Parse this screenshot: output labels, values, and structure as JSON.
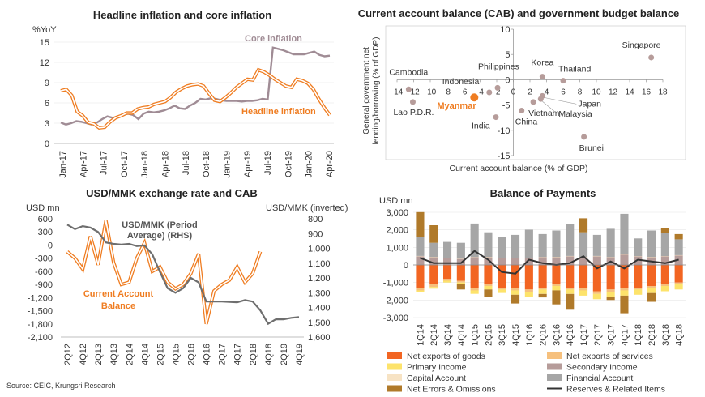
{
  "source": "Source: CEIC, Krungsri Research",
  "chart_data": [
    {
      "type": "line",
      "title": "Headline inflation and core inflation",
      "ylabel": "%YoY",
      "ylim": [
        0,
        15
      ],
      "yticks": [
        0,
        3,
        6,
        9,
        12,
        15
      ],
      "x_tick_labels": [
        "Jan-17",
        "Apr-17",
        "Jul-17",
        "Oct-17",
        "Jan-18",
        "Apr-18",
        "Jul-18",
        "Oct-18",
        "Jan-19",
        "Apr-19",
        "Jul-19",
        "Oct-19",
        "Jan-20",
        "Apr-20"
      ],
      "series": [
        {
          "name": "Core inflation",
          "color": "#a08c95",
          "values": [
            3.1,
            2.8,
            3.0,
            3.3,
            3.2,
            3.0,
            2.8,
            3.1,
            3.6,
            4.0,
            3.8,
            3.9,
            4.2,
            4.4,
            4.2,
            3.6,
            4.4,
            4.7,
            4.6,
            4.7,
            4.9,
            5.2,
            5.6,
            5.2,
            5.1,
            5.6,
            6.0,
            6.6,
            6.5,
            6.7,
            6.6,
            6.4,
            6.3,
            6.3,
            6.3,
            6.2,
            6.3,
            6.3,
            6.4,
            6.6,
            6.5,
            14.2,
            14.0,
            13.8,
            13.5,
            13.2,
            13.2,
            13.2,
            13.4,
            13.6,
            13.1,
            12.9,
            13.0
          ]
        },
        {
          "name": "Headline inflation",
          "color": "#ef7d22",
          "values": [
            7.8,
            8.0,
            7.1,
            4.7,
            4.1,
            3.1,
            2.9,
            2.3,
            2.4,
            3.2,
            3.8,
            4.1,
            4.5,
            4.5,
            5.1,
            5.3,
            5.4,
            5.8,
            6.0,
            6.2,
            6.8,
            7.6,
            8.1,
            8.5,
            8.7,
            8.8,
            8.5,
            7.4,
            6.4,
            6.2,
            6.8,
            7.5,
            8.3,
            8.9,
            9.5,
            9.4,
            10.9,
            10.6,
            10.1,
            9.5,
            9.0,
            8.5,
            8.3,
            9.5,
            9.3,
            8.9,
            8.0,
            6.6,
            5.3,
            4.2
          ]
        }
      ]
    },
    {
      "type": "scatter",
      "title": "Current account balance (CAB) and government budget balance",
      "xlabel": "Current account balance (% of GDP)",
      "ylabel": "General government net lending/borrowing (% of GDP)",
      "xlim": [
        -14,
        18
      ],
      "ylim": [
        -15,
        10
      ],
      "xticks": [
        -14,
        -12,
        -10,
        -8,
        -6,
        -4,
        -2,
        0,
        2,
        4,
        6,
        8,
        10,
        12,
        14,
        16,
        18
      ],
      "yticks": [
        -15,
        -10,
        -5,
        0,
        5,
        10
      ],
      "points": [
        {
          "label": "Singapore",
          "x": 16.6,
          "y": 4.4
        },
        {
          "label": "Korea",
          "x": 3.5,
          "y": 0.6
        },
        {
          "label": "Thailand",
          "x": 6.0,
          "y": -0.2
        },
        {
          "label": "Philippines",
          "x": -1.9,
          "y": -1.6
        },
        {
          "label": "Indonesia",
          "x": -2.9,
          "y": -2.5
        },
        {
          "label": "Cambodia",
          "x": -12.6,
          "y": -1.9
        },
        {
          "label": "Lao P.D.R.",
          "x": -12.1,
          "y": -4.4
        },
        {
          "label": "Myanmar",
          "x": -4.7,
          "y": -3.5
        },
        {
          "label": "India",
          "x": -2.1,
          "y": -7.4
        },
        {
          "label": "China",
          "x": 1.0,
          "y": -6.1
        },
        {
          "label": "Vietnam",
          "x": 2.4,
          "y": -4.4
        },
        {
          "label": "Japan",
          "x": 3.5,
          "y": -3.2
        },
        {
          "label": "Malaysia",
          "x": 3.3,
          "y": -3.8
        },
        {
          "label": "Brunei",
          "x": 8.5,
          "y": -11.3
        }
      ]
    },
    {
      "type": "line",
      "title": "USD/MMK exchange rate and CAB",
      "left_unit": "USD mn",
      "right_unit": "USD/MMK (inverted)",
      "ylim_left": [
        -2100,
        600
      ],
      "ylim_right": [
        1600,
        800
      ],
      "yticks_left": [
        600,
        300,
        0,
        -300,
        -600,
        -900,
        -1200,
        -1500,
        -1800,
        -2100
      ],
      "ytick_labels_left": [
        "600",
        "300",
        "0",
        "-300",
        "-600",
        "-900",
        "-1,200",
        "-1,500",
        "-1,800",
        "-2,100"
      ],
      "yticks_right": [
        800,
        900,
        1000,
        1100,
        1200,
        1300,
        1400,
        1500,
        1600
      ],
      "ytick_labels_right": [
        "800",
        "900",
        "1,000",
        "1,100",
        "1,200",
        "1,300",
        "1,400",
        "1,500",
        "1,600"
      ],
      "categories": [
        "2Q12",
        "3Q12",
        "4Q12",
        "1Q13",
        "2Q13",
        "3Q13",
        "4Q13",
        "1Q14",
        "2Q14",
        "3Q14",
        "4Q14",
        "1Q15",
        "2Q15",
        "3Q15",
        "4Q15",
        "1Q16",
        "2Q16",
        "3Q16",
        "4Q16",
        "1Q17",
        "2Q17",
        "3Q17",
        "4Q17",
        "1Q18",
        "2Q18",
        "3Q18",
        "4Q18",
        "1Q19",
        "2Q19",
        "3Q19",
        "4Q19"
      ],
      "x_tick_labels": [
        "2Q12",
        "4Q12",
        "2Q13",
        "4Q13",
        "2Q14",
        "4Q14",
        "2Q15",
        "4Q15",
        "2Q16",
        "4Q16",
        "2Q17",
        "4Q17",
        "2Q18",
        "4Q18",
        "2Q19",
        "4Q19"
      ],
      "series": [
        {
          "name": "Current Account Balance",
          "axis": "left",
          "color": "#ef7d22",
          "values": [
            -150,
            -300,
            -550,
            200,
            -450,
            560,
            -400,
            -900,
            -850,
            -300,
            50,
            -600,
            -500,
            -850,
            -1000,
            -900,
            -650,
            -200,
            -1800,
            -1050,
            -900,
            -800,
            -500,
            -850,
            -650,
            -150,
            null,
            null,
            null,
            null,
            null
          ]
        },
        {
          "name": "USD/MMK (Period Average) (RHS)",
          "axis": "right",
          "color": "#6e6e6e",
          "values": [
            840,
            870,
            850,
            860,
            890,
            960,
            970,
            975,
            970,
            985,
            980,
            1040,
            1160,
            1270,
            1300,
            1270,
            1200,
            1230,
            1360,
            1360,
            1360,
            1362,
            1365,
            1350,
            1360,
            1420,
            1510,
            1480,
            1480,
            1470,
            1465
          ]
        }
      ],
      "annotations": [
        "USD/MMK (Period",
        "Average) (RHS)",
        "Current Account",
        "Balance"
      ]
    },
    {
      "type": "bar",
      "title": "Balance of Payments",
      "ylabel": "USD mn",
      "ylim": [
        -3000,
        3000
      ],
      "yticks": [
        3000,
        2000,
        1000,
        0,
        -1000,
        -2000,
        -3000
      ],
      "ytick_labels": [
        "3,000",
        "2,000",
        "1,000",
        "0",
        "-1,000",
        "-2,000",
        "-3,000"
      ],
      "categories": [
        "1Q14",
        "2Q14",
        "3Q14",
        "4Q14",
        "1Q15",
        "2Q15",
        "3Q15",
        "4Q15",
        "1Q16",
        "2Q16",
        "3Q16",
        "4Q16",
        "1Q17",
        "2Q17",
        "3Q17",
        "4Q17",
        "1Q18",
        "2Q18",
        "3Q18",
        "4Q18"
      ],
      "x_tick_labels": [
        "1Q14",
        "2Q14",
        "3Q14",
        "4Q14",
        "1Q15",
        "2Q15",
        "3Q15",
        "4Q15",
        "1Q16",
        "2Q16",
        "3Q16",
        "4Q16",
        "1Q17",
        "2Q17",
        "3Q17",
        "4Q17",
        "1Q18",
        "2Q18",
        "3Q18",
        "4Q18"
      ],
      "series": [
        {
          "name": "Net exports of goods",
          "color": "#f26522",
          "values": [
            -1300,
            -1100,
            -800,
            -900,
            -1300,
            -1100,
            -1300,
            -1300,
            -1400,
            -1300,
            -1100,
            -1300,
            -1300,
            -1500,
            -1400,
            -1300,
            -1300,
            -1200,
            -1100,
            -1000
          ]
        },
        {
          "name": "Net exports of services",
          "color": "#f6c07d",
          "values": [
            -150,
            -150,
            -100,
            -100,
            -150,
            -100,
            -100,
            -150,
            -150,
            -100,
            -100,
            -100,
            -150,
            -150,
            -150,
            -150,
            -100,
            -100,
            -100,
            -100
          ]
        },
        {
          "name": "Primary Income",
          "color": "#fde36b",
          "values": [
            -100,
            -100,
            -100,
            -100,
            -200,
            -200,
            -200,
            -250,
            -250,
            -250,
            -250,
            -250,
            -300,
            -300,
            -250,
            -300,
            -300,
            -300,
            -300,
            -300
          ]
        },
        {
          "name": "Secondary Income",
          "color": "#b69c9a",
          "values": [
            500,
            450,
            400,
            350,
            450,
            450,
            400,
            400,
            400,
            450,
            450,
            500,
            450,
            500,
            450,
            600,
            500,
            450,
            500,
            550
          ]
        },
        {
          "name": "Capital Account",
          "color": "#f7e3c4",
          "values": [
            10,
            10,
            10,
            10,
            10,
            10,
            10,
            10,
            10,
            10,
            10,
            10,
            10,
            10,
            10,
            10,
            10,
            10,
            10,
            10
          ]
        },
        {
          "name": "Financial Account",
          "color": "#a6a6a6",
          "values": [
            1100,
            800,
            900,
            900,
            1900,
            1400,
            1200,
            1300,
            1600,
            1300,
            1500,
            1800,
            1400,
            1200,
            1600,
            2300,
            1000,
            1500,
            1300,
            900
          ]
        },
        {
          "name": "Net Errors & Omissions",
          "color": "#b07a2a",
          "values": [
            1400,
            1000,
            0,
            -300,
            0,
            -400,
            0,
            -500,
            0,
            -200,
            -800,
            -900,
            800,
            0,
            -200,
            -1000,
            0,
            -500,
            300,
            300
          ]
        },
        {
          "name": "Reserves & Related Items",
          "color": "#333333",
          "type": "line",
          "values": [
            400,
            100,
            100,
            100,
            800,
            300,
            -400,
            -500,
            300,
            100,
            0,
            100,
            500,
            -200,
            200,
            -200,
            300,
            200,
            100,
            300
          ]
        }
      ]
    }
  ]
}
